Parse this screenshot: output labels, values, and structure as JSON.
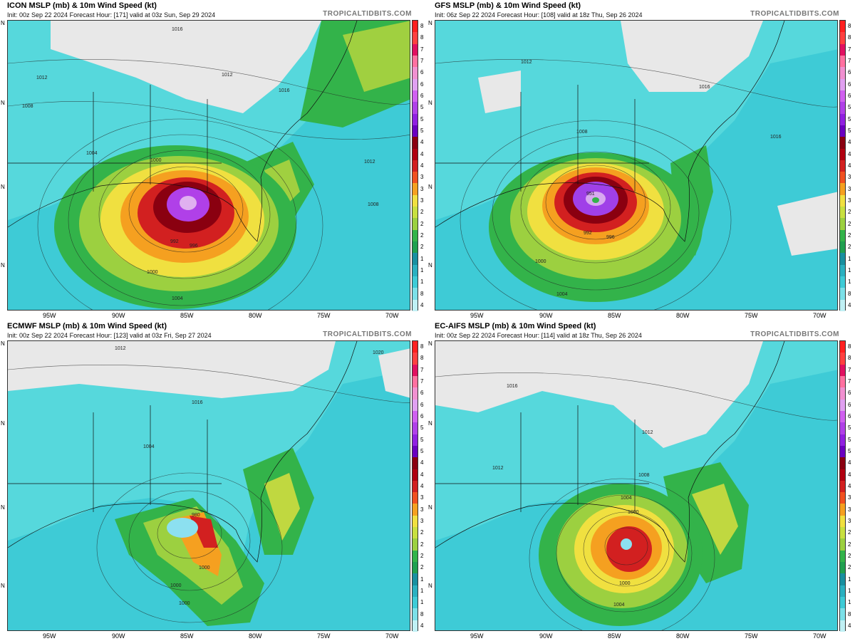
{
  "brand": "TROPICALTIDBITS.COM",
  "colorbar_labels": [
    "8",
    "8",
    "7",
    "7",
    "6",
    "6",
    "6",
    "5",
    "5",
    "5",
    "4",
    "4",
    "4",
    "3",
    "3",
    "3",
    "2",
    "2",
    "2",
    "2",
    "1",
    "1",
    "1",
    "8",
    "4"
  ],
  "x_ticks": [
    "95W",
    "90W",
    "85W",
    "80W",
    "75W",
    "70W"
  ],
  "y_ticks": [
    "N",
    "N",
    "N",
    "N"
  ],
  "colors": {
    "cyan": "#3ed0d8",
    "teal": "#2ab0c0",
    "green": "#33b34a",
    "yellow": "#f0e040",
    "orange": "#f5a020",
    "red": "#d22020",
    "darkred": "#8a0010",
    "purple": "#9a30e0",
    "gray": "#e8e8e8"
  },
  "panels": [
    {
      "title": "ICON MSLP (mb) & 10m Wind Speed (kt)",
      "subtitle": "Init: 00z Sep 22 2024   Forecast Hour: [171]   valid at 03z Sun, Sep 29 2024",
      "center_pressure": "",
      "isobar_labels": [
        "1016",
        "1012",
        "1012",
        "1008",
        "1004",
        "1000",
        "1012",
        "1008",
        "992",
        "996",
        "1000",
        "1004",
        "1016"
      ]
    },
    {
      "title": "GFS MSLP (mb) & 10m Wind Speed (kt)",
      "subtitle": "Init: 06z Sep 22 2024   Forecast Hour: [108]   valid at 18z Thu, Sep 26 2024",
      "center_pressure": "951",
      "isobar_labels": [
        "1012",
        "1016",
        "1008",
        "992",
        "996",
        "1000",
        "1004",
        "1016"
      ]
    },
    {
      "title": "ECMWF MSLP (mb) & 10m Wind Speed (kt)",
      "subtitle": "Init: 00z Sep 22 2024   Forecast Hour: [123]   valid at 03z Fri, Sep 27 2024",
      "center_pressure": "980",
      "isobar_labels": [
        "1012",
        "1020",
        "1016",
        "1004",
        "1000",
        "1000",
        "1000"
      ]
    },
    {
      "title": "EC-AIFS MSLP (mb) & 10m Wind Speed (kt)",
      "subtitle": "Init: 00z Sep 22 2024   Forecast Hour: [114]   valid at 18z Thu, Sep 26 2024",
      "center_pressure": "",
      "isobar_labels": [
        "1016",
        "1012",
        "1012",
        "1008",
        "1004",
        "1000",
        "1000",
        "1004"
      ]
    }
  ]
}
